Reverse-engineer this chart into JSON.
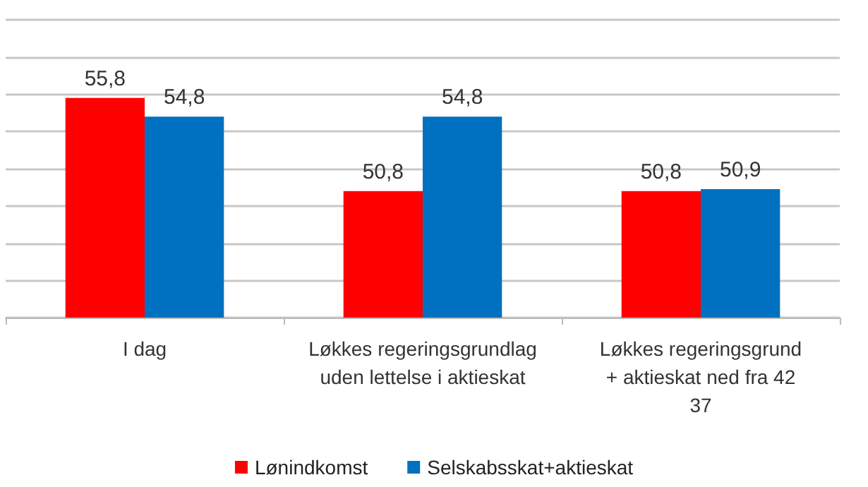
{
  "chart_data": {
    "type": "bar",
    "categories": [
      "I dag",
      "Løkkes regeringsgrundlag\nuden lettelse i aktieskat",
      "Løkkes regeringsgrund\n+ aktieskat ned fra 42\n37"
    ],
    "series": [
      {
        "name": "Lønindkomst",
        "color": "#ff0000",
        "values": [
          55.8,
          50.8,
          50.8
        ],
        "value_labels": [
          "55,8",
          "50,8",
          "50,8"
        ]
      },
      {
        "name": "Selskabsskat+aktieskat",
        "color": "#0070c0",
        "values": [
          54.8,
          54.8,
          50.9
        ],
        "value_labels": [
          "54,8",
          "54,8",
          "50,9"
        ]
      }
    ],
    "ylim": [
      44,
      60
    ],
    "yticks": [
      {
        "value": 44,
        "label": null
      },
      {
        "value": 46,
        "label": null
      },
      {
        "value": 48,
        "label": null
      },
      {
        "value": 50,
        "label": null
      },
      {
        "value": 52,
        "label": null
      },
      {
        "value": 54,
        "label": null
      },
      {
        "value": 56,
        "label": null
      },
      {
        "value": 58,
        "label": null
      },
      {
        "value": 60,
        "label": null
      }
    ],
    "tick_labels": "x",
    "grid": "y",
    "legend": "bottom"
  }
}
